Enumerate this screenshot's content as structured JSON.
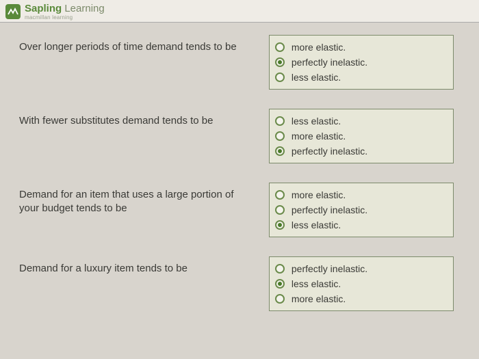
{
  "brand": {
    "word1": "Sapling",
    "word2": "Learning",
    "subtitle": "macmillan learning"
  },
  "questions": [
    {
      "text": "Over longer periods of time demand tends to be",
      "selected": 1,
      "options": [
        "more elastic.",
        "perfectly inelastic.",
        "less elastic."
      ]
    },
    {
      "text": "With fewer substitutes demand tends to be",
      "selected": 2,
      "options": [
        "less elastic.",
        "more elastic.",
        "perfectly inelastic."
      ]
    },
    {
      "text": "Demand for an item that uses a large portion of your budget tends to be",
      "selected": 2,
      "options": [
        "more elastic.",
        "perfectly inelastic.",
        "less elastic."
      ]
    },
    {
      "text": "Demand for a luxury item tends to be",
      "selected": 1,
      "options": [
        "perfectly inelastic.",
        "less elastic.",
        "more elastic."
      ]
    }
  ],
  "colors": {
    "accent": "#5a8a3a",
    "page_bg": "#d8d4cd",
    "box_bg": "#e7e7d8",
    "box_border": "#7c8a6a"
  }
}
